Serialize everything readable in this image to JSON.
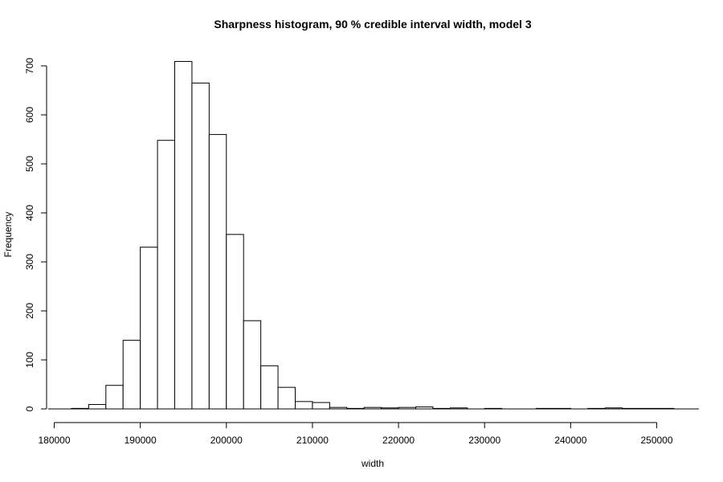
{
  "chart_data": {
    "type": "bar",
    "title": "Sharpness histogram, 90 % credible interval width, model 3",
    "xlabel": "width",
    "ylabel": "Frequency",
    "bin_width": 2000,
    "bin_starts": [
      182000,
      184000,
      186000,
      188000,
      190000,
      192000,
      194000,
      196000,
      198000,
      200000,
      202000,
      204000,
      206000,
      208000,
      210000,
      212000,
      214000,
      216000,
      218000,
      220000,
      222000,
      224000,
      226000,
      228000,
      230000,
      232000,
      234000,
      236000,
      238000,
      240000,
      242000,
      244000,
      246000,
      248000,
      250000
    ],
    "values": [
      1,
      9,
      48,
      140,
      330,
      548,
      709,
      665,
      560,
      356,
      180,
      88,
      44,
      15,
      13,
      3,
      1,
      3,
      2,
      3,
      4,
      1,
      2,
      0,
      1,
      0,
      0,
      1,
      1,
      0,
      1,
      2,
      1,
      1,
      1
    ],
    "xlim": [
      180000,
      255000
    ],
    "ylim": [
      0,
      700
    ],
    "x_ticks": [
      "180000",
      "190000",
      "200000",
      "210000",
      "220000",
      "230000",
      "240000",
      "250000"
    ],
    "y_ticks": [
      "0",
      "100",
      "200",
      "300",
      "400",
      "500",
      "600",
      "700"
    ],
    "grid": false,
    "legend": "none"
  }
}
